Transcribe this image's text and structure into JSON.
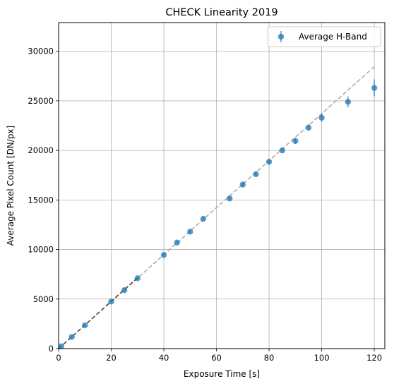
{
  "chart_data": {
    "type": "scatter",
    "title": "CHECK Linearity 2019",
    "xlabel": "Exposure Time [s]",
    "ylabel": "Average Pixel Count [DN/px]",
    "xlim": [
      0,
      124
    ],
    "ylim": [
      0,
      32900
    ],
    "xticks": [
      0,
      20,
      40,
      60,
      80,
      100,
      120
    ],
    "yticks": [
      0,
      5000,
      10000,
      15000,
      20000,
      25000,
      30000
    ],
    "grid": true,
    "legend_position": "top-right",
    "series": [
      {
        "name": "Average H-Band",
        "color": "#1f77b4",
        "points": [
          {
            "x": 1,
            "y": 230,
            "err": 80
          },
          {
            "x": 5,
            "y": 1180,
            "err": 100
          },
          {
            "x": 10,
            "y": 2350,
            "err": 100
          },
          {
            "x": 20,
            "y": 4750,
            "err": 120
          },
          {
            "x": 25,
            "y": 5900,
            "err": 130
          },
          {
            "x": 30,
            "y": 7100,
            "err": 140
          },
          {
            "x": 40,
            "y": 9450,
            "err": 150
          },
          {
            "x": 45,
            "y": 10700,
            "err": 160
          },
          {
            "x": 50,
            "y": 11800,
            "err": 170
          },
          {
            "x": 55,
            "y": 13100,
            "err": 180
          },
          {
            "x": 65,
            "y": 15150,
            "err": 200
          },
          {
            "x": 70,
            "y": 16550,
            "err": 210
          },
          {
            "x": 75,
            "y": 17600,
            "err": 230
          },
          {
            "x": 80,
            "y": 18850,
            "err": 250
          },
          {
            "x": 85,
            "y": 20000,
            "err": 260
          },
          {
            "x": 90,
            "y": 20950,
            "err": 280
          },
          {
            "x": 95,
            "y": 22300,
            "err": 320
          },
          {
            "x": 100,
            "y": 23300,
            "err": 400
          },
          {
            "x": 110,
            "y": 24900,
            "err": 550
          },
          {
            "x": 120,
            "y": 26300,
            "err": 850
          }
        ]
      }
    ],
    "fit_lines": [
      {
        "kind": "full-range fit",
        "color": "#aaaaaa",
        "style": "dashed",
        "x": [
          0,
          120
        ],
        "y": [
          0,
          28450
        ]
      },
      {
        "kind": "short-exposure fit",
        "color": "#444444",
        "style": "dashed",
        "x": [
          0,
          30
        ],
        "y": [
          0,
          7150
        ]
      }
    ]
  }
}
